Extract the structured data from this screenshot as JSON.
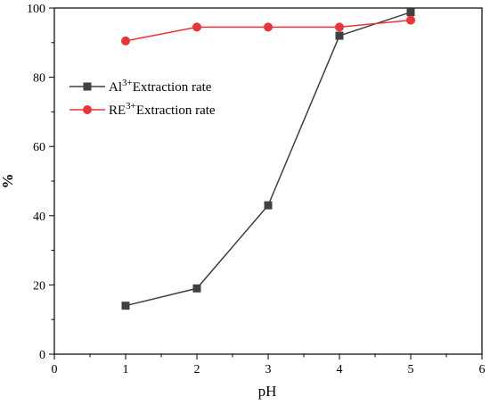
{
  "chart_data": {
    "type": "line",
    "title": "",
    "xlabel": "pH",
    "ylabel": "%",
    "xlim": [
      0,
      6
    ],
    "ylim": [
      0,
      100
    ],
    "xticks": [
      "0",
      "1",
      "2",
      "3",
      "4",
      "5",
      "6"
    ],
    "yticks": [
      "0",
      "20",
      "40",
      "60",
      "80",
      "100"
    ],
    "grid": false,
    "legend_position": "upper-left",
    "series": [
      {
        "name_base": "Al",
        "name_sup": "3+",
        "name_rest": "Extraction rate",
        "color": "#404040",
        "marker": "square",
        "x": [
          1,
          2,
          3,
          4,
          5
        ],
        "y": [
          14.0,
          19.0,
          43.0,
          92.0,
          98.8
        ]
      },
      {
        "name_base": "RE",
        "name_sup": "3+",
        "name_rest": "Extraction rate",
        "color": "#e8353a",
        "marker": "circle",
        "x": [
          1,
          2,
          3,
          4,
          5
        ],
        "y": [
          90.5,
          94.5,
          94.5,
          94.5,
          96.5
        ]
      }
    ]
  }
}
